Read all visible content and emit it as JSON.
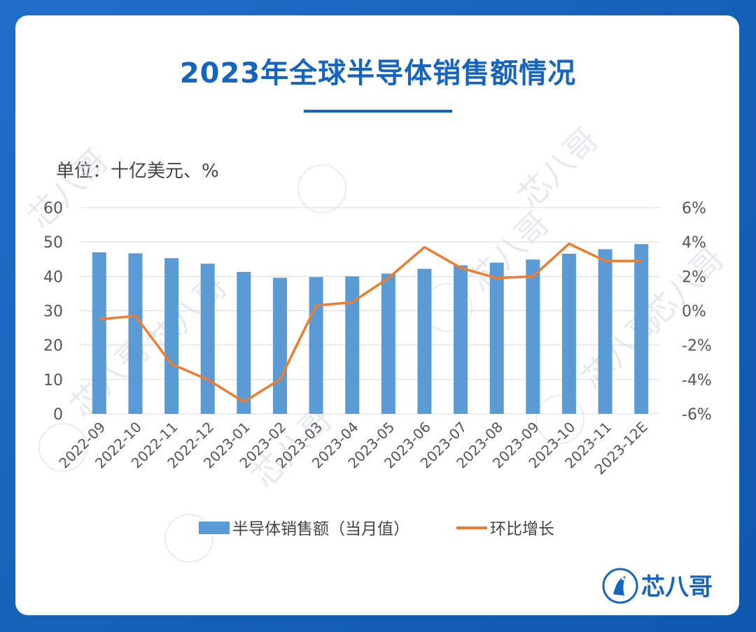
{
  "title": "2023年全球半导体销售额情况",
  "unit_label": "单位：十亿美元、%",
  "logo_text": "芯八哥",
  "watermark_text": "芯八哥",
  "colors": {
    "bar": "#5b9bd5",
    "line": "#ed7d31",
    "accent": "#1565c0"
  },
  "chart_data": {
    "type": "bar",
    "categories": [
      "2022-09",
      "2022-10",
      "2022-11",
      "2022-12",
      "2023-01",
      "2023-02",
      "2023-03",
      "2023-04",
      "2023-05",
      "2023-06",
      "2023-07",
      "2023-08",
      "2023-09",
      "2023-10",
      "2023-11",
      "2023-12E"
    ],
    "series": [
      {
        "name": "半导体销售额（当月值）",
        "type": "bar",
        "axis": "left",
        "values": [
          47.0,
          46.7,
          45.3,
          43.7,
          41.3,
          39.6,
          39.8,
          40.0,
          40.8,
          42.2,
          43.2,
          44.0,
          44.9,
          46.6,
          47.9,
          49.4
        ]
      },
      {
        "name": "环比增长",
        "type": "line",
        "axis": "right",
        "values": [
          -0.5,
          -0.3,
          -3.1,
          -4.0,
          -5.3,
          -4.0,
          0.3,
          0.5,
          1.9,
          3.7,
          2.5,
          1.9,
          2.0,
          3.9,
          2.9,
          2.9
        ]
      }
    ],
    "ylim_left": [
      0,
      60
    ],
    "yticks_left": [
      "60",
      "50",
      "40",
      "30",
      "20",
      "10",
      "0"
    ],
    "ylim_right": [
      -6,
      6
    ],
    "yticks_right": [
      "6%",
      "4%",
      "2%",
      "0%",
      "-2%",
      "-4%",
      "-6%"
    ],
    "grid": true,
    "legend": "bottom"
  }
}
